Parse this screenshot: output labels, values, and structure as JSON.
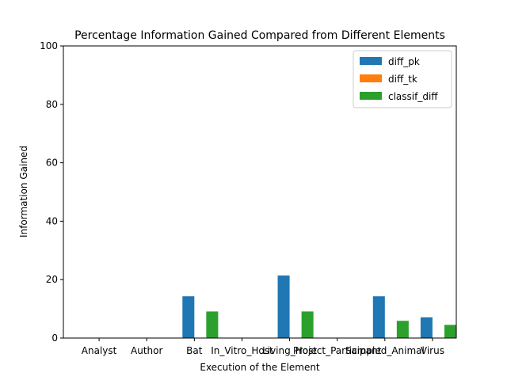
{
  "chart_data": {
    "type": "bar",
    "title": "Percentage Information Gained Compared from Different Elements",
    "xlabel": "Execution of the Element",
    "ylabel": "Information Gained",
    "ylim": [
      0,
      100
    ],
    "yticks": [
      0,
      20,
      40,
      60,
      80,
      100
    ],
    "categories": [
      "Analyst",
      "Author",
      "Bat",
      "In_Vitro_Host",
      "Living_Host",
      "Project_Participant",
      "Sampled_Animal",
      "Virus"
    ],
    "series": [
      {
        "name": "diff_pk",
        "color": "#1f77b4",
        "values": [
          0,
          0,
          14.3,
          0,
          21.4,
          0,
          14.3,
          7.1
        ]
      },
      {
        "name": "diff_tk",
        "color": "#ff7f0e",
        "values": [
          0,
          0,
          0,
          0,
          0,
          0,
          0,
          0
        ]
      },
      {
        "name": "classif_diff",
        "color": "#2ca02c",
        "values": [
          0,
          0,
          9.1,
          0,
          9.1,
          0,
          5.9,
          4.5
        ]
      }
    ],
    "grid": false,
    "legend": "top-right"
  }
}
